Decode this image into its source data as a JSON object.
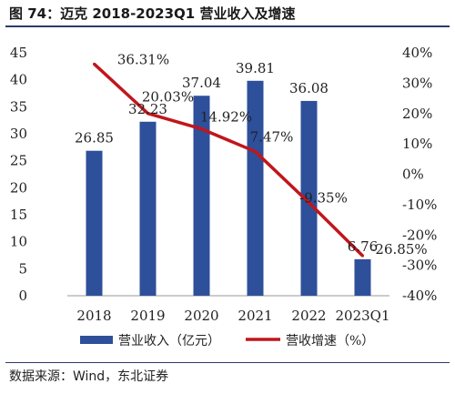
{
  "title": "图 74：迈克 2018-2023Q1 营业收入及增速",
  "source": "数据来源：Wind，东北证券",
  "chart_data": {
    "type": "bar",
    "categories": [
      "2018",
      "2019",
      "2020",
      "2021",
      "2022",
      "2023Q1"
    ],
    "series": [
      {
        "name": "营业收入（亿元）",
        "type": "bar",
        "axis": "left",
        "values": [
          26.85,
          32.23,
          37.04,
          39.81,
          36.08,
          6.76
        ],
        "labels": [
          "26.85",
          "32.23",
          "37.04",
          "39.81",
          "36.08",
          "6.76"
        ],
        "color": "#2e4f9a"
      },
      {
        "name": "营收增速（%）",
        "type": "line",
        "axis": "right",
        "values": [
          36.31,
          20.03,
          14.92,
          7.47,
          -9.35,
          -26.85
        ],
        "labels": [
          "36.31%",
          "20.03%",
          "14.92%",
          "7.47%",
          "-9.35%",
          "-26.85%"
        ],
        "color": "#c0161c"
      }
    ],
    "y_left": {
      "min": 0,
      "max": 45,
      "ticks": [
        "0",
        "5",
        "10",
        "15",
        "20",
        "25",
        "30",
        "35",
        "40",
        "45"
      ]
    },
    "y_right": {
      "min": -40,
      "max": 40,
      "ticks": [
        "-40%",
        "-30%",
        "-20%",
        "-10%",
        "0%",
        "10%",
        "20%",
        "30%",
        "40%"
      ]
    },
    "legend_position": "bottom",
    "grid": false
  }
}
